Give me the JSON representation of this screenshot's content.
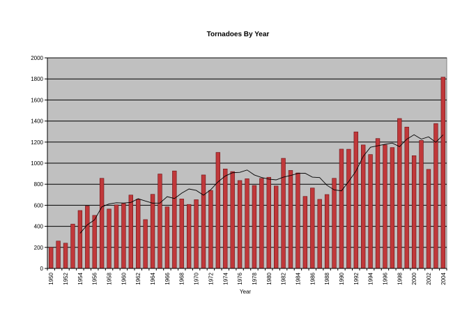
{
  "chart_data": {
    "type": "bar",
    "title": "Tornadoes By Year",
    "xlabel": "Year",
    "ylabel": "",
    "ylim": [
      0,
      2000
    ],
    "yticks": [
      0,
      200,
      400,
      600,
      800,
      1000,
      1200,
      1400,
      1600,
      1800,
      2000
    ],
    "x_tick_labels": [
      "1950",
      "1952",
      "1954",
      "1956",
      "1958",
      "1960",
      "1962",
      "1964",
      "1966",
      "1968",
      "1970",
      "1972",
      "1974",
      "1976",
      "1978",
      "1980",
      "1982",
      "1984",
      "1986",
      "1988",
      "1990",
      "1992",
      "1994",
      "1996",
      "1998",
      "2000",
      "2002",
      "2004"
    ],
    "grid": true,
    "legend": "none",
    "colors": {
      "bar": "#c0383a",
      "bar_edge": "#6b0f12",
      "plot_bg": "#c0c0c0",
      "trend": "#000000",
      "grid": "#000000"
    },
    "categories": [
      1950,
      1951,
      1952,
      1953,
      1954,
      1955,
      1956,
      1957,
      1958,
      1959,
      1960,
      1961,
      1962,
      1963,
      1964,
      1965,
      1966,
      1967,
      1968,
      1969,
      1970,
      1971,
      1972,
      1973,
      1974,
      1975,
      1976,
      1977,
      1978,
      1979,
      1980,
      1981,
      1982,
      1983,
      1984,
      1985,
      1986,
      1987,
      1988,
      1989,
      1990,
      1991,
      1992,
      1993,
      1994,
      1995,
      1996,
      1997,
      1998,
      1999,
      2000,
      2001,
      2002,
      2003,
      2004
    ],
    "series": [
      {
        "type": "bar",
        "values": [
          201,
          260,
          240,
          421,
          550,
          593,
          504,
          856,
          564,
          604,
          616,
          697,
          657,
          464,
          704,
          897,
          585,
          926,
          660,
          608,
          653,
          888,
          741,
          1102,
          945,
          920,
          835,
          852,
          788,
          855,
          866,
          783,
          1046,
          931,
          907,
          684,
          764,
          656,
          702,
          856,
          1133,
          1132,
          1297,
          1173,
          1082,
          1234,
          1173,
          1148,
          1424,
          1343,
          1071,
          1216,
          941,
          1376,
          1817
        ]
      },
      {
        "type": "line",
        "values": [
          null,
          null,
          null,
          null,
          334,
          414,
          462,
          585,
          613,
          624,
          621,
          627,
          662,
          640,
          620,
          621,
          682,
          664,
          715,
          755,
          741,
          696,
          748,
          822,
          878,
          909,
          913,
          935,
          888,
          864,
          848,
          841,
          867,
          883,
          903,
          904,
          867,
          863,
          790,
          746,
          737,
          826,
          925,
          1065,
          1151,
          1165,
          1179,
          1191,
          1157,
          1228,
          1270,
          1228,
          1250,
          1198,
          1269
        ]
      }
    ]
  }
}
